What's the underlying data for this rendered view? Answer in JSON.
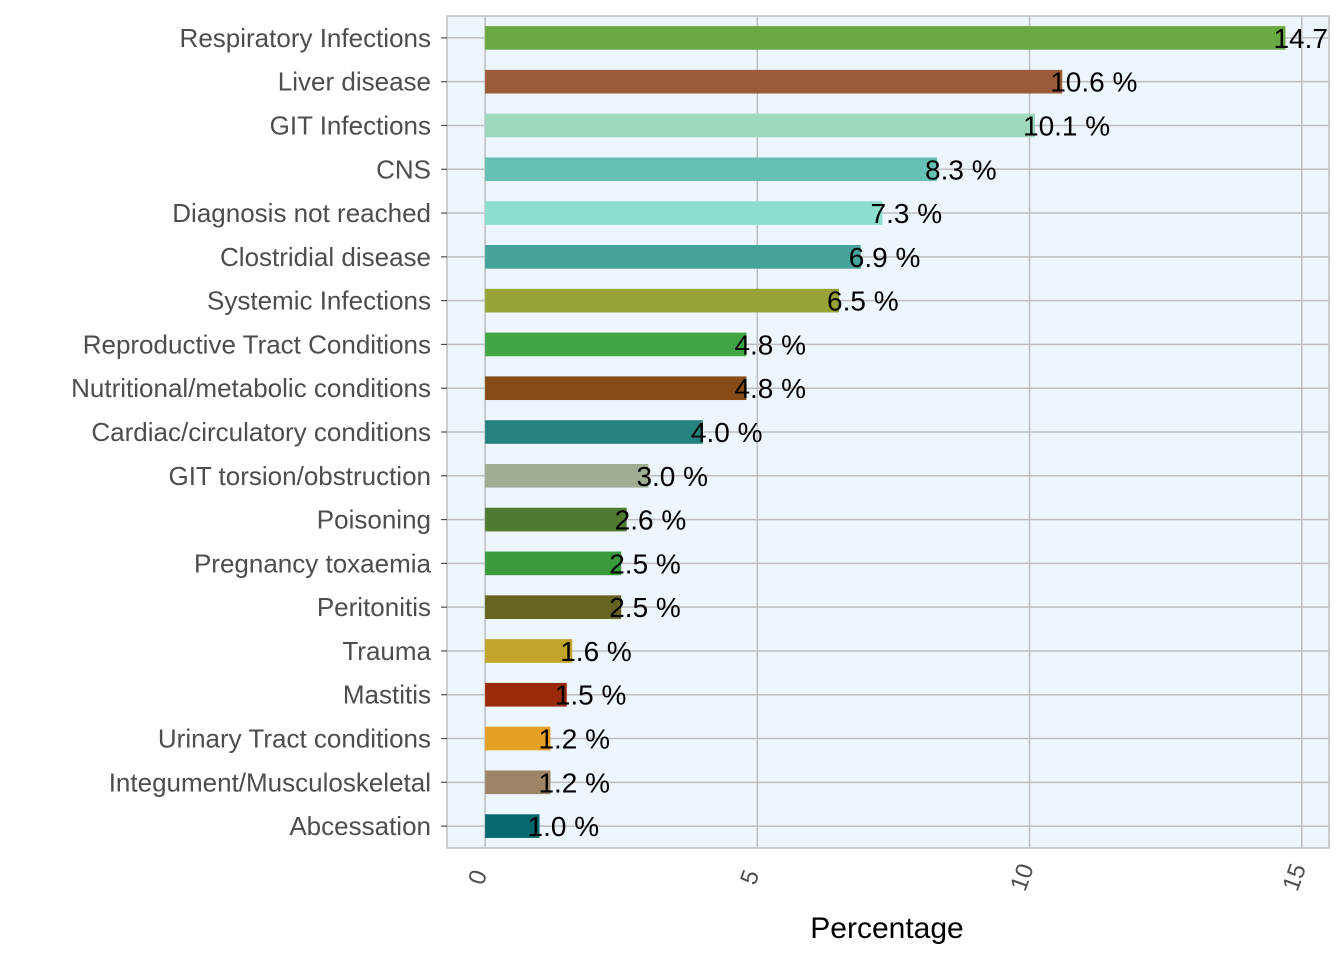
{
  "chart_data": {
    "type": "bar",
    "orientation": "horizontal",
    "title": "",
    "xlabel": "Percentage",
    "ylabel": "",
    "xlim": [
      -0.7,
      15.5
    ],
    "x_ticks": [
      0,
      5,
      10,
      15
    ],
    "x_tick_labels": [
      "0",
      "5",
      "10",
      "15"
    ],
    "grid": true,
    "legend": "none",
    "label_suffix": " %",
    "categories": [
      "Respiratory Infections",
      "Liver disease",
      "GIT Infections",
      "CNS",
      "Diagnosis not reached",
      "Clostridial disease",
      "Systemic Infections",
      "Reproductive Tract Conditions",
      "Nutritional/metabolic conditions",
      "Cardiac/circulatory conditions",
      "GIT torsion/obstruction",
      "Poisoning",
      "Pregnancy toxaemia",
      "Peritonitis",
      "Trauma",
      "Mastitis",
      "Urinary Tract conditions",
      "Integument/Musculoskeletal",
      "Abcessation"
    ],
    "values": [
      14.7,
      10.6,
      10.1,
      8.3,
      7.3,
      6.9,
      6.5,
      4.8,
      4.8,
      4.0,
      3.0,
      2.6,
      2.5,
      2.5,
      1.6,
      1.5,
      1.2,
      1.2,
      1.0
    ],
    "value_labels": [
      "14.7",
      "10.6 %",
      "10.1 %",
      "8.3 %",
      "7.3 %",
      "6.9 %",
      "6.5 %",
      "4.8 %",
      "4.8 %",
      "4.0 %",
      "3.0 %",
      "2.6 %",
      "2.5 %",
      "2.5 %",
      "1.6 %",
      "1.5 %",
      "1.2 %",
      "1.2 %",
      "1.0 %"
    ],
    "colors": [
      "#6aa843",
      "#9b5a38",
      "#9fd8bd",
      "#67c0b4",
      "#8ddfcd",
      "#45a39c",
      "#97a337",
      "#41a544",
      "#874b17",
      "#25827f",
      "#9fae93",
      "#4f7a2f",
      "#3a9b3c",
      "#676321",
      "#c2a42a",
      "#9b2a09",
      "#e6a023",
      "#9d8466",
      "#05686e"
    ],
    "panel_background": "#eef6fd",
    "grid_color": "#bdbdbd"
  }
}
